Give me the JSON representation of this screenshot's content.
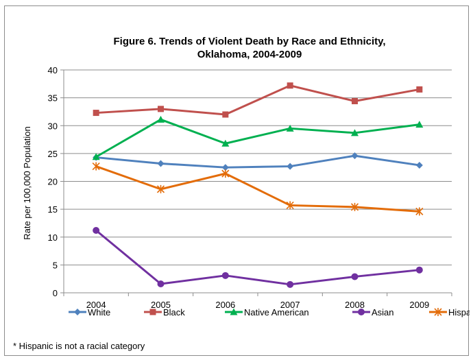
{
  "chart_data": {
    "type": "line",
    "title_lines": [
      "Figure 6. Trends of Violent Death by Race and Ethnicity,",
      "Oklahoma, 2004-2009"
    ],
    "xlabel": "",
    "ylabel": "Rate per 100,000 Population",
    "x": [
      "2004",
      "2005",
      "2006",
      "2007",
      "2008",
      "2009"
    ],
    "ylim": [
      0,
      40
    ],
    "yticks": [
      0,
      5,
      10,
      15,
      20,
      25,
      30,
      35,
      40
    ],
    "grid": true,
    "legend_position": "bottom",
    "series": [
      {
        "name": "White",
        "color": "#4f81bd",
        "marker": "diamond",
        "values": [
          24.3,
          23.2,
          22.5,
          22.7,
          24.6,
          22.9
        ]
      },
      {
        "name": "Black",
        "color": "#c0504d",
        "marker": "square",
        "values": [
          32.3,
          33.0,
          32.0,
          37.2,
          34.4,
          36.5
        ]
      },
      {
        "name": "Native American",
        "color": "#00b050",
        "marker": "triangle",
        "values": [
          24.4,
          31.1,
          26.8,
          29.5,
          28.7,
          30.2
        ]
      },
      {
        "name": "Asian",
        "color": "#7030a0",
        "marker": "circle",
        "values": [
          11.2,
          1.6,
          3.1,
          1.5,
          2.9,
          4.1
        ]
      },
      {
        "name": "Hispanic*",
        "color": "#e36c09",
        "marker": "star",
        "values": [
          22.7,
          18.6,
          21.4,
          15.7,
          15.4,
          14.6
        ]
      }
    ]
  },
  "footnote": "* Hispanic is not a racial category"
}
